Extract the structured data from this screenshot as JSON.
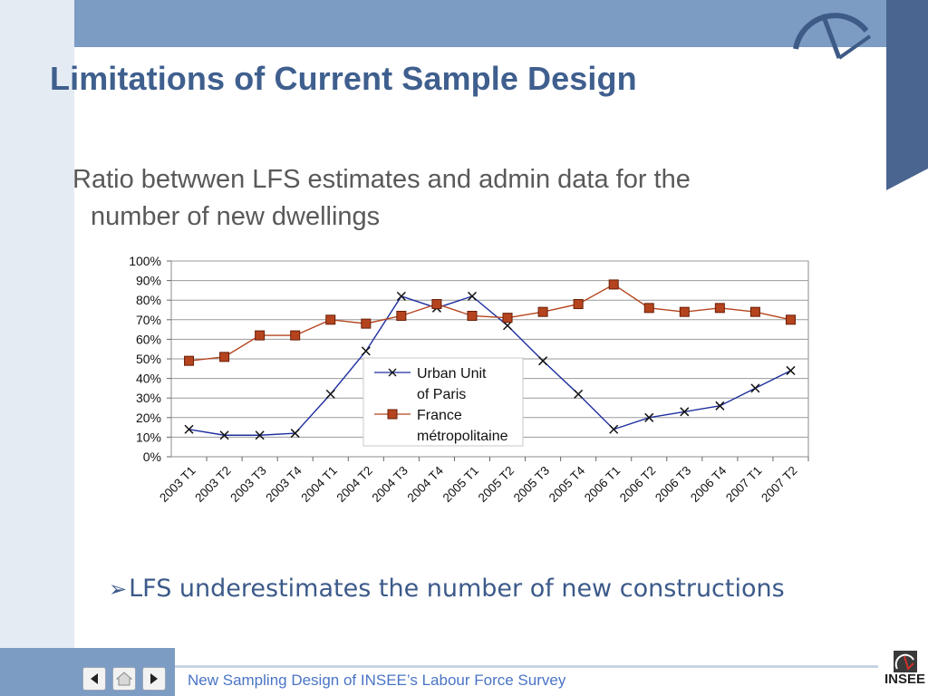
{
  "slide": {
    "title": "Limitations of Current Sample Design",
    "subtitle_line1": "Ratio betwwen LFS estimates and admin data for the",
    "subtitle_line2": "number of new dwellings",
    "bullet_arrow": "➢",
    "bullet_text": "LFS underestimates the number of new constructions"
  },
  "footer": {
    "text": "New Sampling Design of INSEE’s Labour Force Survey",
    "logo_text": "INSEE"
  },
  "icons": {
    "prev": "triangle-left-icon",
    "home": "home-icon",
    "next": "triangle-right-icon",
    "logo": "insee-logo-icon"
  },
  "colors": {
    "title": "#3f5f8e",
    "series_urban": "#1f2f9e",
    "series_france": "#b5441e",
    "series_france_edge": "#6a1e07"
  },
  "chart_data": {
    "type": "line",
    "categories": [
      "2003 T1",
      "2003 T2",
      "2003 T3",
      "2003 T4",
      "2004 T1",
      "2004 T2",
      "2004 T3",
      "2004 T4",
      "2005 T1",
      "2005 T2",
      "2005 T3",
      "2005 T4",
      "2006 T1",
      "2006 T2",
      "2006 T3",
      "2006 T4",
      "2007 T1",
      "2007 T2"
    ],
    "yticks": [
      "0%",
      "10%",
      "20%",
      "30%",
      "40%",
      "50%",
      "60%",
      "70%",
      "80%",
      "90%",
      "100%"
    ],
    "ylim": [
      0,
      100
    ],
    "grid": true,
    "legend_position": "center",
    "series": [
      {
        "name_line1": "Urban Unit",
        "name_line2": "of Paris",
        "marker": "x",
        "values": [
          14,
          11,
          11,
          12,
          32,
          54,
          82,
          76,
          82,
          67,
          49,
          32,
          14,
          20,
          23,
          26,
          35,
          44
        ]
      },
      {
        "name_line1": "France",
        "name_line2": "métropolitaine",
        "marker": "square",
        "values": [
          49,
          51,
          62,
          62,
          70,
          68,
          72,
          78,
          72,
          71,
          74,
          78,
          88,
          76,
          74,
          76,
          74,
          70
        ]
      }
    ]
  }
}
